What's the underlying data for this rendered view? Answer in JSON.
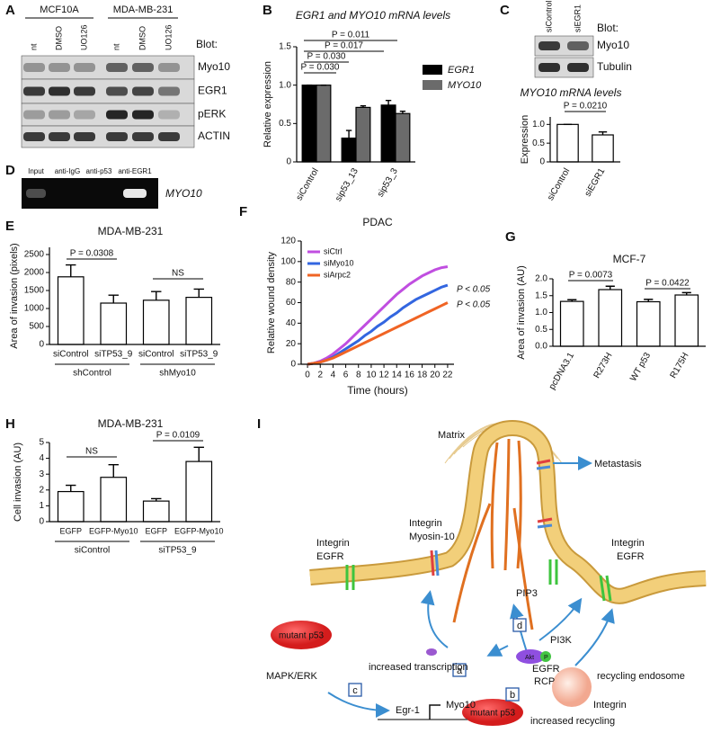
{
  "blot_a": {
    "panel": "A",
    "groups": [
      {
        "name": "MCF10A",
        "lanes": [
          "nt",
          "DMSO",
          "UO126"
        ]
      },
      {
        "name": "MDA-MB-231",
        "lanes": [
          "nt",
          "DMSO",
          "UO126"
        ]
      }
    ],
    "heading": "Blot:",
    "rows": [
      "Myo10",
      "EGR1",
      "pERK",
      "ACTIN"
    ]
  },
  "blot_c": {
    "panel": "C",
    "lanes": [
      "siControl",
      "siEGR1"
    ],
    "heading": "Blot:",
    "rows": [
      "Myo10",
      "Tubulin"
    ]
  },
  "blot_d": {
    "panel": "D",
    "lanes": [
      "Input",
      "anti-IgG",
      "anti-p53",
      "anti-EGR1"
    ],
    "target": "MYO10"
  },
  "chart_data": [
    {
      "type": "bar",
      "panel": "B",
      "title": "EGR1 and MYO10 mRNA levels",
      "y_label": "Relative expression",
      "categories": [
        "siControl",
        "sip53_13",
        "sip53_3"
      ],
      "series": [
        {
          "name": "EGR1",
          "color": "#000000",
          "values": [
            1.0,
            0.31,
            0.74
          ],
          "errors": [
            0,
            0.1,
            0.06
          ]
        },
        {
          "name": "MYO10",
          "color": "#6b6b6b",
          "values": [
            1.0,
            0.71,
            0.63
          ],
          "errors": [
            0,
            0.02,
            0.03
          ]
        }
      ],
      "ylim": [
        0,
        1.5
      ],
      "yticks": [
        0,
        0.5,
        {
          "value": 1,
          "label": "1.0"
        },
        1.5
      ],
      "annotations": [
        "P = 0.011",
        "P = 0.017",
        "P = 0.030",
        "P = 0.030"
      ]
    },
    {
      "type": "bar",
      "title": "MYO10 mRNA levels",
      "y_label": "Expression",
      "categories": [
        "siControl",
        "siEGR1"
      ],
      "values": [
        1.0,
        0.72
      ],
      "errors": [
        0,
        0.08
      ],
      "color": "#ffffff",
      "ylim": [
        0,
        1.2
      ],
      "yticks": [
        0,
        0.5,
        {
          "value": 1,
          "label": "1.0"
        }
      ],
      "annotations": [
        "P = 0.0210"
      ]
    },
    {
      "type": "bar",
      "panel": "E",
      "title": "MDA-MB-231",
      "y_label": "Area of invasion (pixels)",
      "categories": [
        "siControl",
        "siTP53_9",
        "siControl",
        "siTP53_9"
      ],
      "groups": [
        "shControl",
        "shMyo10"
      ],
      "values": [
        1880,
        1150,
        1230,
        1310
      ],
      "errors": [
        330,
        220,
        240,
        230
      ],
      "color": "#ffffff",
      "ylim": [
        0,
        2700
      ],
      "yticks": [
        0,
        500,
        1000,
        1500,
        2000,
        2500
      ],
      "annotations": [
        "P = 0.0308",
        "NS"
      ]
    },
    {
      "type": "line",
      "panel": "F",
      "title": "PDAC",
      "x_label": "Time (hours)",
      "y_label": "Relative wound density",
      "x": [
        0,
        1,
        2,
        3,
        4,
        5,
        6,
        7,
        8,
        9,
        10,
        11,
        12,
        13,
        14,
        15,
        16,
        17,
        18,
        19,
        20,
        21,
        22
      ],
      "series": [
        {
          "name": "siCtrl",
          "color": "#c04ee0",
          "values": [
            0,
            1,
            3,
            6,
            10,
            15,
            20,
            26,
            32,
            38,
            44,
            50,
            56,
            62,
            68,
            73,
            78,
            82,
            86,
            89,
            92,
            94,
            95
          ]
        },
        {
          "name": "siMyo10",
          "color": "#3366e0",
          "values": [
            0,
            1,
            2,
            4,
            7,
            11,
            15,
            19,
            23,
            28,
            32,
            37,
            41,
            46,
            50,
            55,
            59,
            63,
            66,
            69,
            72,
            75,
            77
          ]
        },
        {
          "name": "siArpc2",
          "color": "#f06424",
          "values": [
            0,
            1,
            2,
            4,
            6,
            9,
            12,
            15,
            18,
            21,
            24,
            27,
            30,
            33,
            36,
            39,
            42,
            45,
            48,
            51,
            54,
            57,
            60
          ]
        }
      ],
      "xlim": [
        -1,
        23
      ],
      "xticks": [
        0,
        2,
        4,
        6,
        8,
        10,
        12,
        14,
        16,
        18,
        20,
        22
      ],
      "ylim": [
        0,
        120
      ],
      "yticks": [
        0,
        20,
        40,
        60,
        80,
        100,
        120
      ],
      "annotations": [
        "P < 0.05",
        "P < 0.05"
      ],
      "legend": "upper left"
    },
    {
      "type": "bar",
      "panel": "G",
      "title": "MCF-7",
      "y_label": "Area of invasion (AU)",
      "categories": [
        "pcDNA3.1",
        "R273H",
        "WT p53",
        "R175H"
      ],
      "values": [
        1.33,
        1.68,
        1.32,
        1.52
      ],
      "errors": [
        0.05,
        0.1,
        0.07,
        0.07
      ],
      "color": "#ffffff",
      "ylim": [
        0,
        2
      ],
      "yticks": [
        {
          "value": 0,
          "label": "0.0"
        },
        0.5,
        {
          "value": 1,
          "label": "1.0"
        },
        1.5,
        {
          "value": 2,
          "label": "2.0"
        }
      ],
      "annotations": [
        "P = 0.0073",
        "P = 0.0422"
      ]
    },
    {
      "type": "bar",
      "panel": "H",
      "title": "MDA-MB-231",
      "y_label": "Cell invasion (AU)",
      "categories": [
        "EGFP",
        "EGFP-Myo10",
        "EGFP",
        "EGFP-Myo10"
      ],
      "groups": [
        "siControl",
        "siTP53_9"
      ],
      "values": [
        1.9,
        2.8,
        1.3,
        3.8
      ],
      "errors": [
        0.4,
        0.8,
        0.15,
        0.9
      ],
      "color": "#ffffff",
      "ylim": [
        0,
        5
      ],
      "yticks": [
        0,
        1,
        2,
        3,
        4,
        5
      ],
      "annotations": [
        "NS",
        "P = 0.0109"
      ]
    }
  ],
  "diagram": {
    "panel": "I",
    "matrix": "Matrix",
    "metastasis": "Metastasis",
    "integrin_left": "Integrin",
    "egfr_left": "EGFR",
    "integrin_center": "Integrin",
    "myosin10": "Myosin-10",
    "pip3": "PIP3",
    "integrin_right": "Integrin",
    "egfr_right": "EGFR",
    "pi3k": "PI3K",
    "akt": "Akt",
    "phospho": "P",
    "box_a": "a",
    "box_b": "b",
    "box_c": "c",
    "box_d": "d",
    "mutant_p53_top": "mutant p53",
    "increased_transcription": "increased transcription",
    "mapk_erk": "MAPK/ERK",
    "egr1": "Egr-1",
    "myo10": "Myo10",
    "egfr_endosome": "EGFR",
    "rcp": "RCP",
    "recycling_endosome": "recycling endosome",
    "integrin_endosome": "Integrin",
    "mutant_p53_bottom": "mutant p53",
    "increased_recycling": "increased recycling"
  }
}
